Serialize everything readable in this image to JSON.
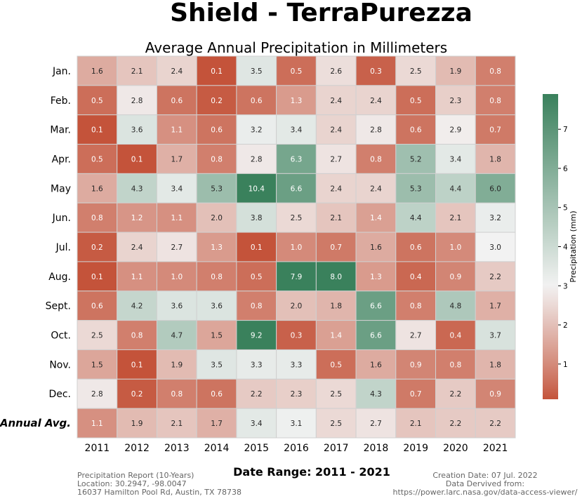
{
  "title": "Shield - TerraPurezza",
  "chart_data": {
    "type": "heatmap",
    "title": "Average Annual Precipitation in Millimeters",
    "columns": [
      "2011",
      "2012",
      "2013",
      "2014",
      "2015",
      "2016",
      "2017",
      "2018",
      "2019",
      "2020",
      "2021"
    ],
    "rows": [
      "Jan.",
      "Feb.",
      "Mar.",
      "Apr.",
      "May",
      "Jun.",
      "Jul.",
      "Aug.",
      "Sept.",
      "Oct.",
      "Nov.",
      "Dec.",
      "Annual Avg."
    ],
    "values": [
      [
        1.6,
        2.1,
        2.4,
        0.1,
        3.5,
        0.5,
        2.6,
        0.3,
        2.5,
        1.9,
        0.8
      ],
      [
        0.5,
        2.8,
        0.6,
        0.2,
        0.6,
        1.3,
        2.4,
        2.4,
        0.5,
        2.3,
        0.8
      ],
      [
        0.1,
        3.6,
        1.1,
        0.6,
        3.2,
        3.4,
        2.4,
        2.8,
        0.6,
        2.9,
        0.7
      ],
      [
        0.5,
        0.1,
        1.7,
        0.8,
        2.8,
        6.3,
        2.7,
        0.8,
        5.2,
        3.4,
        1.8
      ],
      [
        1.6,
        4.3,
        3.4,
        5.3,
        10.4,
        6.6,
        2.4,
        2.4,
        5.3,
        4.4,
        6.0
      ],
      [
        0.8,
        1.2,
        1.1,
        2.0,
        3.8,
        2.5,
        2.1,
        1.4,
        4.4,
        2.1,
        3.2
      ],
      [
        0.2,
        2.4,
        2.7,
        1.3,
        0.1,
        1.0,
        0.7,
        1.6,
        0.6,
        1.0,
        3.0
      ],
      [
        0.1,
        1.1,
        1.0,
        0.8,
        0.5,
        7.9,
        8.0,
        1.3,
        0.4,
        0.9,
        2.2
      ],
      [
        0.6,
        4.2,
        3.6,
        3.6,
        0.8,
        2.0,
        1.8,
        6.6,
        0.8,
        4.8,
        1.7
      ],
      [
        2.5,
        0.8,
        4.7,
        1.5,
        9.2,
        0.3,
        1.4,
        6.6,
        2.7,
        0.4,
        3.7
      ],
      [
        1.5,
        0.1,
        1.9,
        3.5,
        3.3,
        3.3,
        0.5,
        1.6,
        0.9,
        0.8,
        1.8
      ],
      [
        2.8,
        0.2,
        0.8,
        0.6,
        2.2,
        2.3,
        2.5,
        4.3,
        0.7,
        2.2,
        0.9
      ],
      [
        1.1,
        1.9,
        2.1,
        1.7,
        3.4,
        3.1,
        2.5,
        2.7,
        2.1,
        2.2,
        2.2
      ]
    ],
    "colorbar": {
      "label": "Precipitation (mm)",
      "range": [
        0.1,
        7.9
      ],
      "ticks": [
        1,
        2,
        3,
        4,
        5,
        6,
        7
      ],
      "colors": {
        "low": "#c4533a",
        "mid": "#f2f2f2",
        "high": "#3a815c"
      },
      "center": 3.0
    },
    "xlabel": "Date Range: 2011 - 2021"
  },
  "footer": {
    "left": [
      "Precipitation Report (10-Years)",
      "Location: 30.2947, -98.0047",
      "16037 Hamilton Pool Rd, Austin, TX 78738"
    ],
    "right": [
      "Creation Date: 07 Jul. 2022",
      "Data Dervived from:",
      "https://power.larc.nasa.gov/data-access-viewer/"
    ]
  }
}
